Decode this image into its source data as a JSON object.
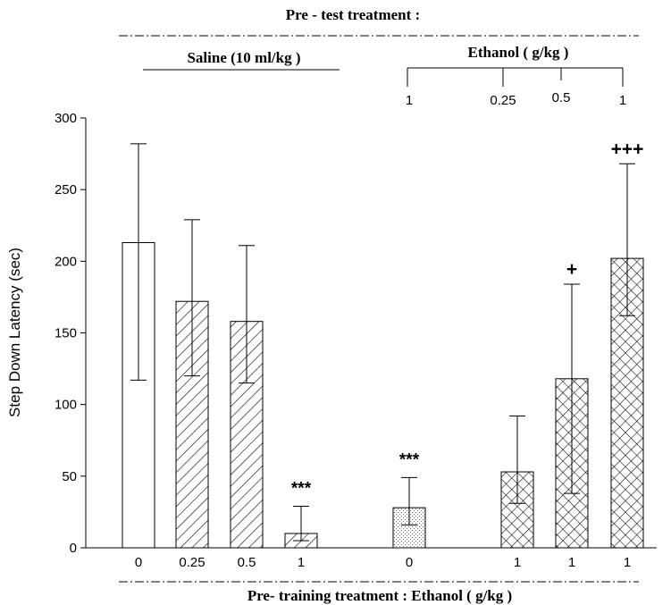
{
  "chart_data": {
    "type": "bar",
    "title": "Pre - test treatment :",
    "xlabel": "Pre- training treatment : Ethanol ( g/kg )",
    "ylabel": "Step Down Latency (sec)",
    "ylim": [
      0,
      300
    ],
    "yticks": [
      "0",
      "50",
      "100",
      "150",
      "200",
      "250",
      "300"
    ],
    "groups": [
      {
        "label": "Saline (10 ml/kg )"
      },
      {
        "label": "Ethanol ( g/kg )"
      }
    ],
    "pretest_labels": [
      "1",
      "0.25",
      "0.5",
      "1"
    ],
    "bars": [
      {
        "category": "0",
        "value": 213,
        "err_low": 117,
        "err_high": 282,
        "pattern": "none",
        "annotation": ""
      },
      {
        "category": "0.25",
        "value": 172,
        "err_low": 120,
        "err_high": 229,
        "pattern": "diag",
        "annotation": ""
      },
      {
        "category": "0.5",
        "value": 158,
        "err_low": 115,
        "err_high": 211,
        "pattern": "diag",
        "annotation": ""
      },
      {
        "category": "1",
        "value": 10,
        "err_low": 5,
        "err_high": 29,
        "pattern": "diag",
        "annotation": "***"
      },
      {
        "category": "0",
        "value": 28,
        "err_low": 16,
        "err_high": 49,
        "pattern": "dots",
        "annotation": "***"
      },
      {
        "category": "1",
        "value": 53,
        "err_low": 31,
        "err_high": 92,
        "pattern": "cross",
        "annotation": ""
      },
      {
        "category": "1",
        "value": 118,
        "err_low": 38,
        "err_high": 184,
        "pattern": "cross",
        "annotation": "+"
      },
      {
        "category": "1",
        "value": 202,
        "err_low": 162,
        "err_high": 268,
        "pattern": "cross",
        "annotation": "+++"
      }
    ]
  }
}
